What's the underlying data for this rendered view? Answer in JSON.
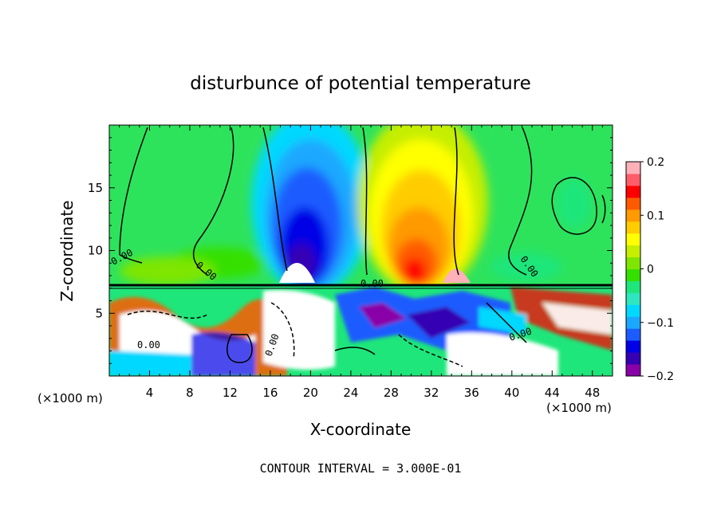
{
  "chart_data": {
    "type": "heatmap",
    "title": "disturbunce of potential temperature",
    "xlabel": "X-coordinate",
    "ylabel": "Z-coordinate",
    "x_unit": "(×1000 m)",
    "xlim": [
      0,
      50
    ],
    "ylim": [
      0,
      20
    ],
    "x_ticks": [
      "4",
      "8",
      "12",
      "16",
      "20",
      "24",
      "28",
      "32",
      "36",
      "40",
      "44",
      "48"
    ],
    "y_ticks": [
      "5",
      "10",
      "15"
    ],
    "colorbar": {
      "range": [
        -0.2,
        0.2
      ],
      "tick_labels": [
        "0.2",
        "0.1",
        "0",
        "−0.1",
        "−0.2"
      ],
      "colors": [
        "#8a00a8",
        "#3500b3",
        "#0000e6",
        "#1c5cff",
        "#1aa8ff",
        "#00d8ff",
        "#2fe6c0",
        "#1ee67a",
        "#34e000",
        "#7ee600",
        "#c6ee00",
        "#ffff00",
        "#ffcc00",
        "#ff9a00",
        "#ff5a00",
        "#ff0000",
        "#ff5c6a",
        "#ffb0b8"
      ]
    },
    "contour_labels": [
      "0.00",
      "0.00",
      "0.00",
      "0.00",
      "0.00",
      "0.00",
      "0.00"
    ],
    "footnote": "CONTOUR INTERVAL = 3.000E-01"
  }
}
